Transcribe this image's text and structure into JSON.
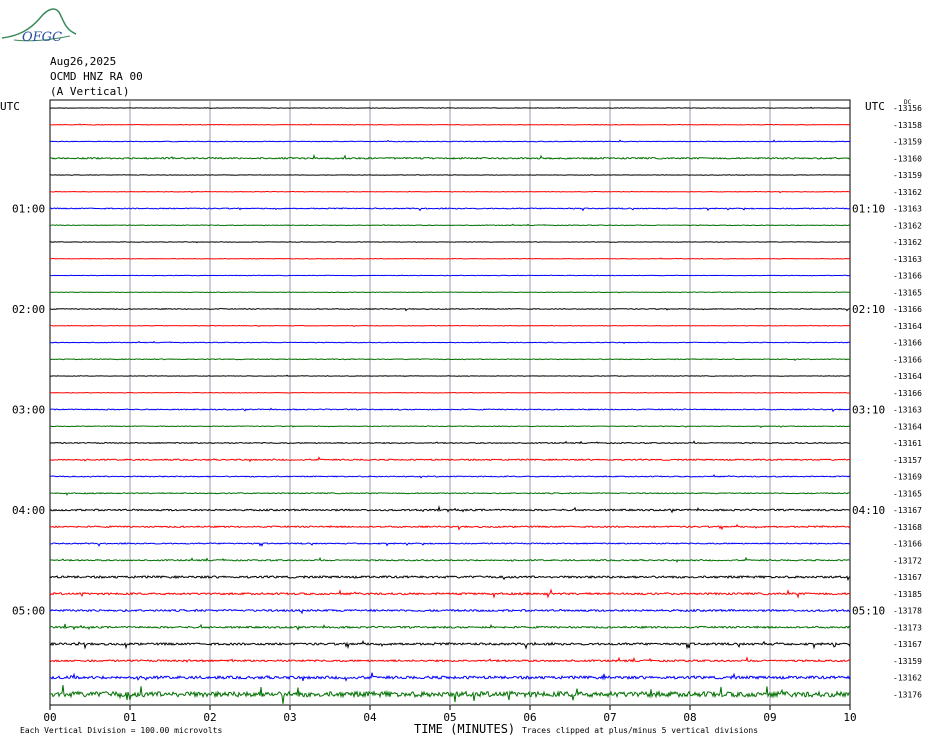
{
  "header": {
    "logo_text": "OFGC",
    "date": "Aug26,2025",
    "station": "OCMD HNZ RA 00",
    "component": "(A Vertical)"
  },
  "chart_data": {
    "type": "line",
    "title": "Aug26,2025",
    "subtitle": "OCMD HNZ RA 00 (A Vertical)",
    "xlabel": "TIME (MINUTES)",
    "xlim": [
      0,
      10
    ],
    "x_ticks": [
      "00",
      "01",
      "02",
      "03",
      "04",
      "05",
      "06",
      "07",
      "08",
      "09",
      "10"
    ],
    "left_axis_label": "UTC",
    "right_axis_label": "UTC",
    "left_time_labels": [
      {
        "row": 6,
        "text": "01:00"
      },
      {
        "row": 12,
        "text": "02:00"
      },
      {
        "row": 18,
        "text": "03:00"
      },
      {
        "row": 24,
        "text": "04:00"
      },
      {
        "row": 30,
        "text": "05:00"
      }
    ],
    "right_time_labels": [
      {
        "row": 6,
        "text": "01:10"
      },
      {
        "row": 12,
        "text": "02:10"
      },
      {
        "row": 18,
        "text": "03:10"
      },
      {
        "row": 24,
        "text": "04:10"
      },
      {
        "row": 30,
        "text": "05:10"
      }
    ],
    "trace_colors": [
      "#000000",
      "#ff0000",
      "#0000ff",
      "#007000"
    ],
    "trace_offsets": [
      "-13156",
      "-13158",
      "-13159",
      "-13160",
      "-13159",
      "-13162",
      "-13163",
      "-13162",
      "-13162",
      "-13163",
      "-13166",
      "-13165",
      "-13166",
      "-13164",
      "-13166",
      "-13166",
      "-13164",
      "-13166",
      "-13163",
      "-13164",
      "-13161",
      "-13157",
      "-13169",
      "-13165",
      "-13167",
      "-13168",
      "-13166",
      "-13172",
      "-13167",
      "-13185",
      "-13178",
      "-13173",
      "-13167",
      "-13159",
      "-13162",
      "-13176"
    ],
    "trace_activity": [
      0.3,
      0.3,
      0.4,
      0.9,
      0.3,
      0.3,
      0.6,
      0.4,
      0.3,
      0.3,
      0.3,
      0.3,
      0.5,
      0.3,
      0.4,
      0.5,
      0.3,
      0.3,
      0.6,
      0.4,
      0.6,
      0.8,
      0.6,
      0.6,
      1.0,
      0.9,
      0.7,
      0.8,
      1.3,
      1.2,
      1.2,
      1.1,
      1.3,
      1.1,
      1.7,
      3.2
    ],
    "grid": true,
    "scale_note": "Each Vertical Division =  100.00 microvolts",
    "clip_note": "Traces clipped at plus/minus 5 vertical divisions",
    "corner_mark": "DC"
  }
}
